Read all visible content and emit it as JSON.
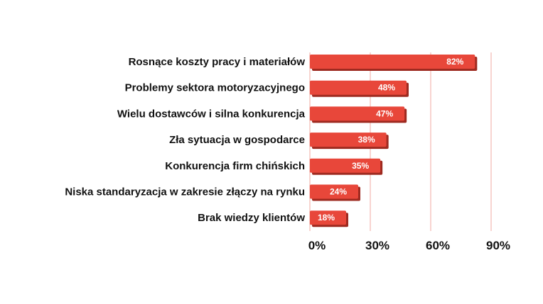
{
  "chart_data": {
    "type": "bar",
    "orientation": "horizontal",
    "categories": [
      "Rosnące koszty pracy i materiałów",
      "Problemy sektora motoryzacyjnego",
      "Wielu dostawców i silna konkurencja",
      "Zła sytuacja w gospodarce",
      "Konkurencja firm chińskich",
      "Niska standaryzacja w zakresie złączy na rynku",
      "Brak wiedzy klientów"
    ],
    "values": [
      82,
      48,
      47,
      38,
      35,
      24,
      18
    ],
    "data_labels": [
      "82%",
      "48%",
      "47%",
      "38%",
      "35%",
      "24%",
      "18%"
    ],
    "xlim": [
      0,
      90
    ],
    "x_ticks": [
      0,
      30,
      60,
      90
    ],
    "x_tick_labels": [
      "0%",
      "30%",
      "60%",
      "90%"
    ],
    "grid": true,
    "bar_color": "#e8473a",
    "bar_shadow_color": "#9e2a20",
    "grid_color": "#f0a8a0"
  }
}
